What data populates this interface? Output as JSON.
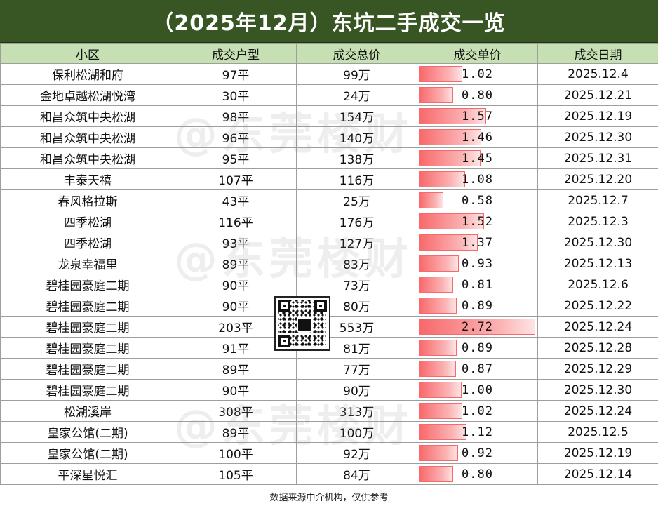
{
  "title": "（2025年12月）东坑二手成交一览",
  "columns": [
    "小区",
    "成交户型",
    "成交总价",
    "成交单价",
    "成交日期"
  ],
  "unit_price_max": 2.72,
  "rows": [
    {
      "community": "保利松湖和府",
      "area": "97平",
      "total": "99万",
      "unit_price": "1.02",
      "date": "2025.12.4"
    },
    {
      "community": "金地卓越松湖悦湾",
      "area": "30平",
      "total": "24万",
      "unit_price": "0.80",
      "date": "2025.12.21"
    },
    {
      "community": "和昌众筑中央松湖",
      "area": "98平",
      "total": "154万",
      "unit_price": "1.57",
      "date": "2025.12.19"
    },
    {
      "community": "和昌众筑中央松湖",
      "area": "96平",
      "total": "140万",
      "unit_price": "1.46",
      "date": "2025.12.30"
    },
    {
      "community": "和昌众筑中央松湖",
      "area": "95平",
      "total": "138万",
      "unit_price": "1.45",
      "date": "2025.12.31"
    },
    {
      "community": "丰泰天禧",
      "area": "107平",
      "total": "116万",
      "unit_price": "1.08",
      "date": "2025.12.20"
    },
    {
      "community": "春风格拉斯",
      "area": "43平",
      "total": "25万",
      "unit_price": "0.58",
      "date": "2025.12.7"
    },
    {
      "community": "四季松湖",
      "area": "116平",
      "total": "176万",
      "unit_price": "1.52",
      "date": "2025.12.3"
    },
    {
      "community": "四季松湖",
      "area": "93平",
      "total": "127万",
      "unit_price": "1.37",
      "date": "2025.12.30"
    },
    {
      "community": "龙泉幸福里",
      "area": "89平",
      "total": "83万",
      "unit_price": "0.93",
      "date": "2025.12.13"
    },
    {
      "community": "碧桂园豪庭二期",
      "area": "90平",
      "total": "73万",
      "unit_price": "0.81",
      "date": "2025.12.6"
    },
    {
      "community": "碧桂园豪庭二期",
      "area": "90平",
      "total": "80万",
      "unit_price": "0.89",
      "date": "2025.12.22"
    },
    {
      "community": "碧桂园豪庭二期",
      "area": "203平",
      "total": "553万",
      "unit_price": "2.72",
      "date": "2025.12.24"
    },
    {
      "community": "碧桂园豪庭二期",
      "area": "91平",
      "total": "81万",
      "unit_price": "0.89",
      "date": "2025.12.28"
    },
    {
      "community": "碧桂园豪庭二期",
      "area": "89平",
      "total": "77万",
      "unit_price": "0.87",
      "date": "2025.12.29"
    },
    {
      "community": "碧桂园豪庭二期",
      "area": "90平",
      "total": "90万",
      "unit_price": "1.00",
      "date": "2025.12.30"
    },
    {
      "community": "松湖溪岸",
      "area": "308平",
      "total": "313万",
      "unit_price": "1.02",
      "date": "2025.12.24"
    },
    {
      "community": "皇家公馆(二期)",
      "area": "89平",
      "total": "100万",
      "unit_price": "1.12",
      "date": "2025.12.5"
    },
    {
      "community": "皇家公馆(二期)",
      "area": "100平",
      "total": "92万",
      "unit_price": "0.92",
      "date": "2025.12.19"
    },
    {
      "community": "平深星悦汇",
      "area": "105平",
      "total": "84万",
      "unit_price": "0.80",
      "date": "2025.12.14"
    }
  ],
  "footer": "数据来源中介机构，仅供参考",
  "watermark": "@东莞楼财",
  "colors": {
    "title_bg": "#375623",
    "header_bg": "#c6e0b4",
    "databar": "#f8696b"
  }
}
